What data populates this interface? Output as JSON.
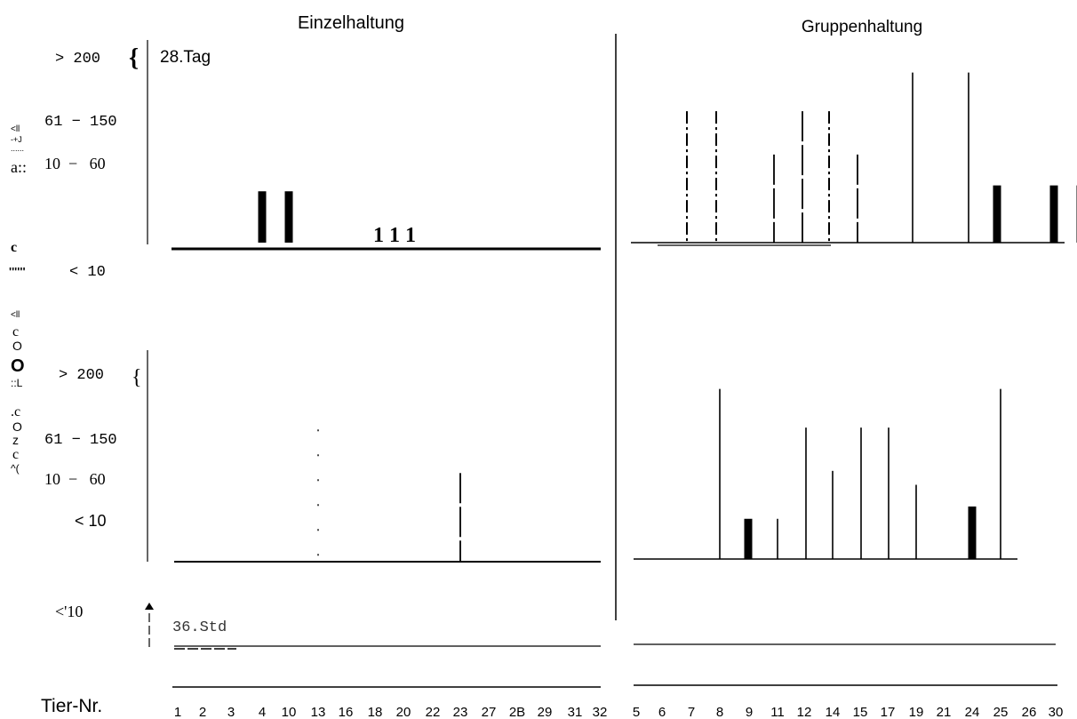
{
  "chart_data": [
    {
      "panel": "Einzelhaltung, 28. Tag",
      "type": "bar",
      "title": "Einzelhaltung",
      "annotation": "28.Tag",
      "y_levels": [
        "> 200",
        "61 − 150",
        "10  −   60",
        "< 10"
      ],
      "categories": [
        "1",
        "2",
        "3",
        "4",
        "10",
        "13",
        "16",
        "18",
        "20",
        "22",
        "23",
        "27",
        "2B",
        "29",
        "31",
        "32"
      ],
      "series": [
        {
          "values": [
            0,
            0,
            0,
            35,
            35,
            0,
            0,
            0,
            0,
            0,
            0,
            0,
            0,
            0,
            0,
            0
          ],
          "style": [
            "none",
            "none",
            "none",
            "bold",
            "bold",
            "none",
            "none",
            "none",
            "none",
            "none",
            "none",
            "none",
            "none",
            "none",
            "none",
            "none"
          ]
        }
      ],
      "value_labels": [
        "1",
        "1",
        "1"
      ]
    },
    {
      "panel": "Gruppenhaltung, 28. Tag",
      "type": "bar",
      "title": "Gruppenhaltung",
      "categories": [
        "5",
        "6",
        "7",
        "8",
        "9",
        "11",
        "12",
        "14",
        "15",
        "17",
        "19",
        "21",
        "24",
        "25",
        "26",
        "30"
      ],
      "series": [
        {
          "values": [
            0,
            85,
            85,
            0,
            57,
            85,
            85,
            57,
            0,
            0,
            0,
            0,
            0,
            0,
            0,
            0
          ],
          "style": [
            "none",
            "dashdot",
            "dashdot",
            "none",
            "dashed",
            "dashed",
            "dashdot",
            "dashed",
            "none",
            "none",
            "none",
            "none",
            "none",
            "none",
            "none",
            "none"
          ]
        },
        {
          "values": [
            0,
            0,
            0,
            0,
            0,
            0,
            0,
            0,
            0,
            110,
            0,
            110,
            37,
            0,
            37,
            37
          ],
          "style": [
            "none",
            "none",
            "none",
            "none",
            "none",
            "none",
            "none",
            "none",
            "none",
            "thin",
            "none",
            "thin",
            "bold",
            "none",
            "bold",
            "bold"
          ]
        }
      ]
    },
    {
      "panel": "Einzelhaltung, 36 Std.",
      "type": "bar",
      "y_levels": [
        "> 200",
        "61 − 150",
        "10  −   60",
        "< 10"
      ],
      "categories": [
        "1",
        "2",
        "3",
        "4",
        "10",
        "13",
        "16",
        "18",
        "20",
        "22",
        "23",
        "27",
        "2B",
        "29",
        "31",
        "32"
      ],
      "series": [
        {
          "values": [
            0,
            0,
            0,
            0,
            0,
            85,
            0,
            0,
            0,
            0,
            57,
            0,
            0,
            0,
            0,
            0
          ],
          "style": [
            "none",
            "none",
            "none",
            "none",
            "none",
            "dotted",
            "none",
            "none",
            "none",
            "none",
            "dashed",
            "none",
            "none",
            "none",
            "none",
            "none"
          ]
        }
      ]
    },
    {
      "panel": "Gruppenhaltung, 36 Std.",
      "type": "bar",
      "categories": [
        "5",
        "6",
        "7",
        "8",
        "9",
        "11",
        "12",
        "14",
        "15",
        "17",
        "19",
        "21",
        "24",
        "25",
        "26",
        "30"
      ],
      "series": [
        {
          "values": [
            0,
            0,
            110,
            26,
            26,
            85,
            57,
            85,
            85,
            48,
            0,
            34,
            110,
            0,
            0,
            0
          ],
          "style": [
            "none",
            "none",
            "thin",
            "bold",
            "thin",
            "thin",
            "thin",
            "thin",
            "thin",
            "thin",
            "none",
            "bold",
            "thin",
            "none",
            "none",
            "none"
          ]
        }
      ]
    },
    {
      "panel": "< 10 rows",
      "type": "bar",
      "y_levels": [
        "<'10"
      ],
      "annotation": "36.Std",
      "categories": [
        "1",
        "2",
        "3",
        "4",
        "10",
        "13",
        "16",
        "18",
        "20",
        "22",
        "23",
        "27",
        "2B",
        "29",
        "31",
        "32",
        "5",
        "6",
        "7",
        "8",
        "9",
        "11",
        "12",
        "14",
        "15",
        "17",
        "19",
        "21",
        "24",
        "25",
        "26",
        "30"
      ],
      "values": [
        0,
        0,
        0,
        0,
        0,
        0,
        0,
        0,
        0,
        0,
        0,
        0,
        0,
        0,
        0,
        0,
        0,
        0,
        0,
        0,
        0,
        0,
        0,
        0,
        0,
        0,
        0,
        0,
        0,
        0,
        0,
        0
      ]
    }
  ],
  "titles": {
    "left": "Einzelhaltung",
    "right": "Gruppenhaltung"
  },
  "top_block": {
    "level_200": "> 200",
    "level_61_150": "61 − 150",
    "level_10_60": "10  −   60",
    "day_label": "28.Tag",
    "value_labels": "1 1 1",
    "lt10": "< 10"
  },
  "mid_block": {
    "level_200": "> 200",
    "level_61_150": "61 − 150",
    "level_10_60": "10  −   60",
    "lt10": "< 10"
  },
  "bottom_block": {
    "lt10": "<'10",
    "hour_label": "36.Std"
  },
  "side_glyphs": {
    "g1": "<ll",
    "g2": "-+J",
    "g3": "......",
    "g4": "a::",
    "g5": "c",
    "g6": "''''''",
    "g7": "<ll",
    "g8": "c",
    "g9": "O",
    "g10": "O",
    "g11": "::L",
    "g12": ".c",
    "g13": "O",
    "g14": "z",
    "g15": "c",
    "g16": "^("
  },
  "x_axis": {
    "title": "Tier-Nr.",
    "left_ticks": [
      "1",
      "2",
      "3",
      "4",
      "10",
      "13",
      "16",
      "18",
      "20",
      "22",
      "23",
      "27",
      "2B",
      "29",
      "31",
      "32"
    ],
    "right_ticks": [
      "5",
      "6",
      "7",
      "8",
      "9",
      "11",
      "12",
      "14",
      "15",
      "17",
      "19",
      "21",
      "24",
      "25",
      "26",
      "30"
    ]
  }
}
